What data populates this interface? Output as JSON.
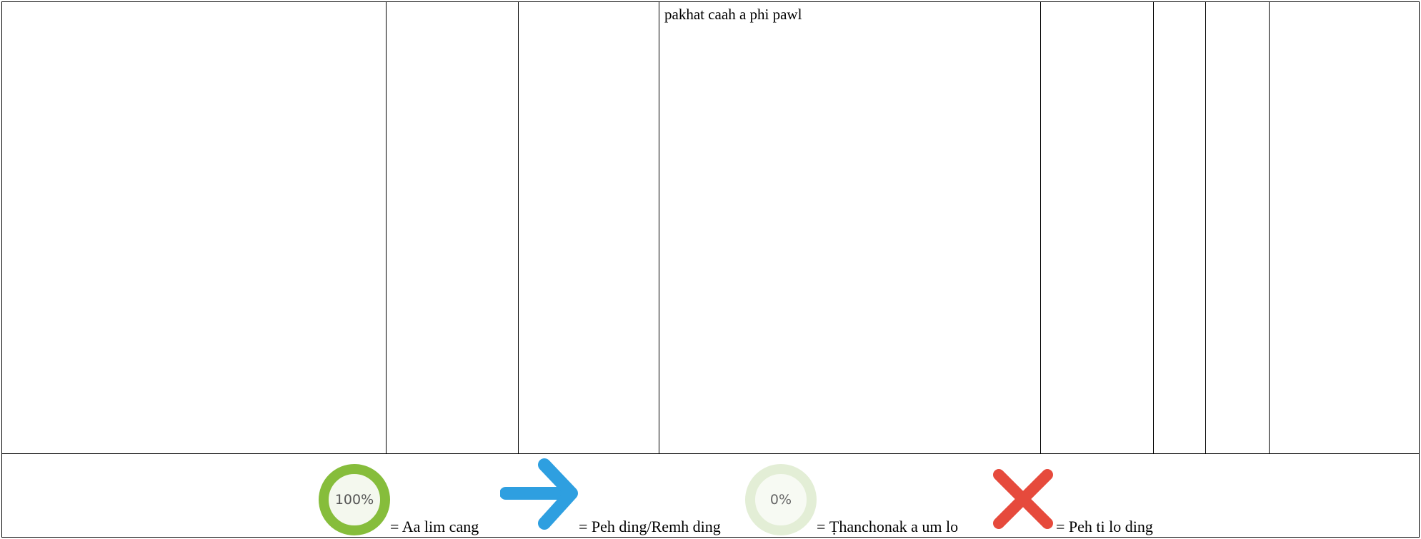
{
  "table": {
    "cell_text": "pakhat caah a phi pawl"
  },
  "legend": {
    "complete": {
      "icon": "progress-100-icon",
      "ring_text": "100%",
      "label": "= Aa lim cang",
      "color": "#86bd3b"
    },
    "in_progress": {
      "icon": "arrow-right-icon",
      "label": "= Peh ding/Remh ding",
      "color": "#2e9fe0"
    },
    "not_started": {
      "icon": "progress-0-icon",
      "ring_text": "0%",
      "label": "= Ṭhanchonak a um lo",
      "color": "#e3eed6"
    },
    "do_not_continue": {
      "icon": "x-icon",
      "label": "= Peh ti lo ding",
      "color": "#e64a3c"
    }
  }
}
